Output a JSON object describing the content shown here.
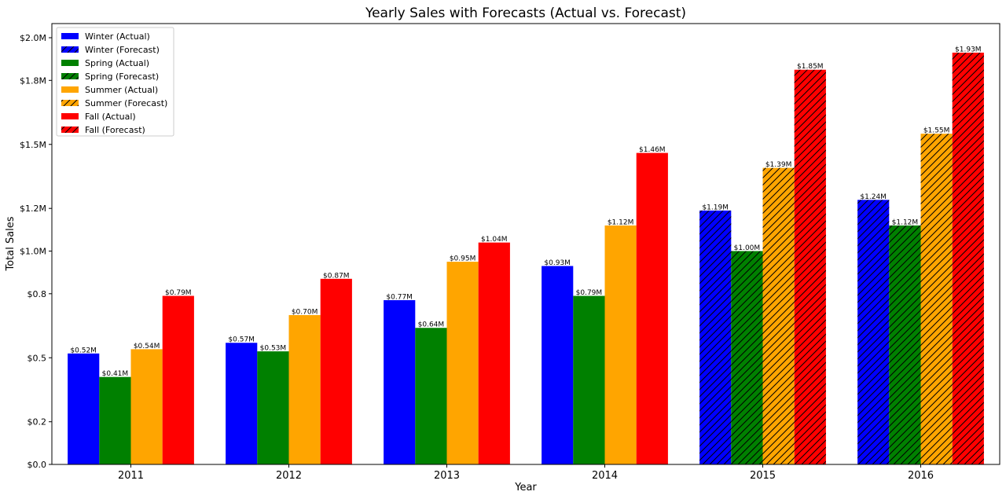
{
  "chart_data": {
    "type": "bar",
    "title": "Yearly Sales with Forecasts (Actual vs. Forecast)",
    "xlabel": "Year",
    "ylabel": "Total Sales",
    "categories": [
      "2011",
      "2012",
      "2013",
      "2014",
      "2015",
      "2016"
    ],
    "ylim": [
      0,
      2.0
    ],
    "yticks": [
      0,
      0.2,
      0.5,
      0.8,
      1.0,
      1.2,
      1.5,
      1.8,
      2.0
    ],
    "ytick_labels": [
      "$0.0",
      "$0.2",
      "$0.5",
      "$0.8",
      "$1.0M",
      "$1.2M",
      "$1.5M",
      "$1.8M",
      "$2.0M"
    ],
    "forecast_categories": [
      "2015",
      "2016"
    ],
    "series": [
      {
        "name": "Winter",
        "color": "#0000ff",
        "values": [
          0.52,
          0.57,
          0.77,
          0.93,
          1.19,
          1.24
        ],
        "labels": [
          "$0.52M",
          "$0.57M",
          "$0.77M",
          "$0.93M",
          "$1.19M",
          "$1.24M"
        ]
      },
      {
        "name": "Spring",
        "color": "#008000",
        "values": [
          0.41,
          0.53,
          0.64,
          0.79,
          1.0,
          1.12
        ],
        "labels": [
          "$0.41M",
          "$0.53M",
          "$0.64M",
          "$0.79M",
          "$1.00M",
          "$1.12M"
        ]
      },
      {
        "name": "Summer",
        "color": "#ffa500",
        "values": [
          0.54,
          0.7,
          0.95,
          1.12,
          1.39,
          1.55
        ],
        "labels": [
          "$0.54M",
          "$0.70M",
          "$0.95M",
          "$1.12M",
          "$1.39M",
          "$1.55M"
        ]
      },
      {
        "name": "Fall",
        "color": "#ff0000",
        "values": [
          0.79,
          0.87,
          1.04,
          1.46,
          1.85,
          1.93
        ],
        "labels": [
          "$0.79M",
          "$0.87M",
          "$1.04M",
          "$1.46M",
          "$1.85M",
          "$1.93M"
        ]
      }
    ],
    "legend": {
      "placement": "top-left",
      "entries": [
        {
          "label": "Winter (Actual)",
          "color": "#0000ff",
          "hatched": false
        },
        {
          "label": "Winter (Forecast)",
          "color": "#0000ff",
          "hatched": true
        },
        {
          "label": "Spring (Actual)",
          "color": "#008000",
          "hatched": false
        },
        {
          "label": "Spring (Forecast)",
          "color": "#008000",
          "hatched": true
        },
        {
          "label": "Summer (Actual)",
          "color": "#ffa500",
          "hatched": false
        },
        {
          "label": "Summer (Forecast)",
          "color": "#ffa500",
          "hatched": true
        },
        {
          "label": "Fall (Actual)",
          "color": "#ff0000",
          "hatched": false
        },
        {
          "label": "Fall (Forecast)",
          "color": "#ff0000",
          "hatched": true
        }
      ]
    },
    "grid": false
  }
}
